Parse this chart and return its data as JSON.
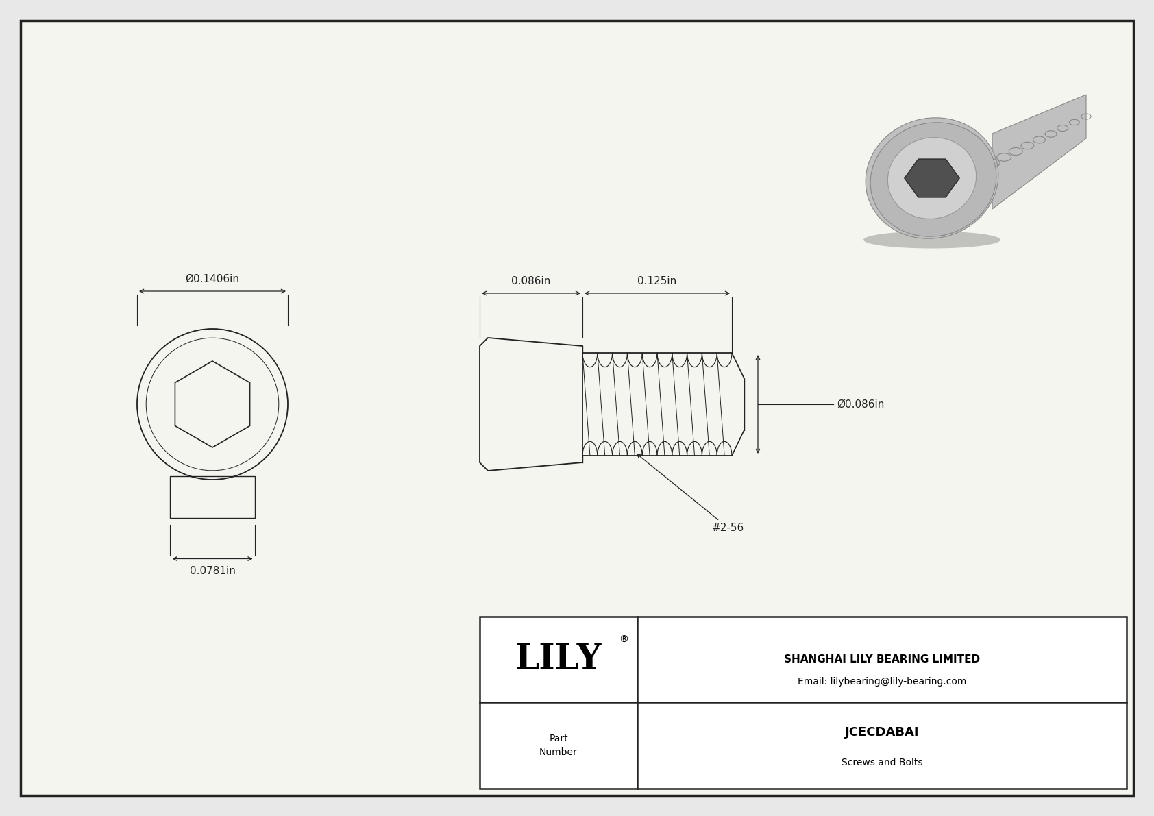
{
  "bg_color": "#e8e8e8",
  "drawing_bg": "#f5f5f0",
  "border_color": "#222222",
  "line_color": "#222222",
  "title": "JCECDABAI",
  "subtitle": "Screws and Bolts",
  "company": "SHANGHAI LILY BEARING LIMITED",
  "email": "Email: lilybearing@lily-bearing.com",
  "part_label": "Part\nNumber",
  "dim_outer": "Ø0.1406in",
  "dim_hex": "0.0781in",
  "dim_head_len": "0.086in",
  "dim_thread_len": "0.125in",
  "dim_shank_dia": "Ø0.086in",
  "thread_label": "#2-56",
  "font_size_dim": 10,
  "font_size_title": 13,
  "font_size_part": 10,
  "lw": 1.0
}
